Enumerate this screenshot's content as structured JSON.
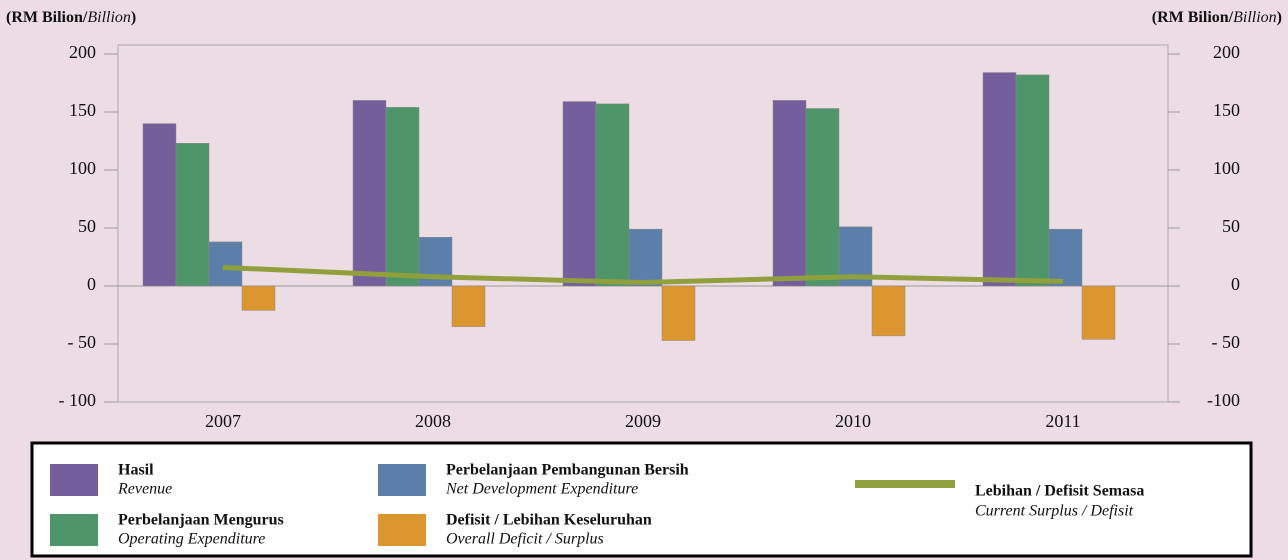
{
  "chart_data": {
    "type": "bar",
    "ylabel": {
      "main": "(RM Bilion/",
      "italic": "Billion",
      "end": ")"
    },
    "y2label": {
      "main": "(RM Bilion/",
      "italic": "Billion",
      "end": ")"
    },
    "categories": [
      "2007",
      "2008",
      "2009",
      "2010",
      "2011"
    ],
    "series": [
      {
        "name": "Hasil",
        "name_en": "Revenue",
        "color": "#745f9c",
        "values": [
          140,
          160,
          159,
          160,
          184
        ]
      },
      {
        "name": "Perbelanjaan Mengurus",
        "name_en": "Operating Expenditure",
        "color": "#4f956a",
        "values": [
          123,
          154,
          157,
          153,
          182
        ]
      },
      {
        "name": "Perbelanjaan Pembangunan Bersih",
        "name_en": "Net Development Expenditure",
        "color": "#5b7fa8",
        "values": [
          38,
          42,
          49,
          51,
          49
        ]
      },
      {
        "name": "Defisit / Lebihan Keseluruhan",
        "name_en": "Overall Deficit / Surplus",
        "color": "#dc9630",
        "values": [
          -21,
          -35,
          -47,
          -43,
          -46
        ]
      },
      {
        "name": "Lebihan / Defisit Semasa",
        "name_en": "Current Surplus / Defisit",
        "color": "#8fa03c",
        "type": "line",
        "values": [
          16,
          8,
          3,
          8,
          4
        ]
      }
    ],
    "ylim": [
      -100,
      200
    ],
    "yticks": [
      {
        "value": -100,
        "label": "- 100"
      },
      {
        "value": -50,
        "label": "- 50"
      },
      0,
      50,
      100,
      150,
      200
    ],
    "y2lim": [
      -100,
      200
    ],
    "y2ticks": [
      {
        "value": -100,
        "label": "-100"
      },
      {
        "value": -50,
        "label": "- 50"
      },
      0,
      50,
      100,
      150,
      200
    ]
  }
}
